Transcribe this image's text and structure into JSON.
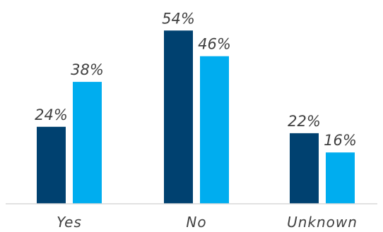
{
  "chart_data": {
    "type": "bar",
    "title": "",
    "xlabel": "",
    "ylabel": "",
    "categories": [
      "Yes",
      "No",
      "Unknown"
    ],
    "series": [
      {
        "values": [
          24,
          54,
          22
        ],
        "labels": [
          "24%",
          "54%",
          "22%"
        ],
        "color": "#004170"
      },
      {
        "values": [
          38,
          46,
          16
        ],
        "labels": [
          "38%",
          "46%",
          "16%"
        ],
        "color": "#00adef"
      }
    ],
    "ylim": [
      0,
      60
    ],
    "grid": false,
    "legend": "none",
    "baseline_color": "#d9d9d9"
  }
}
